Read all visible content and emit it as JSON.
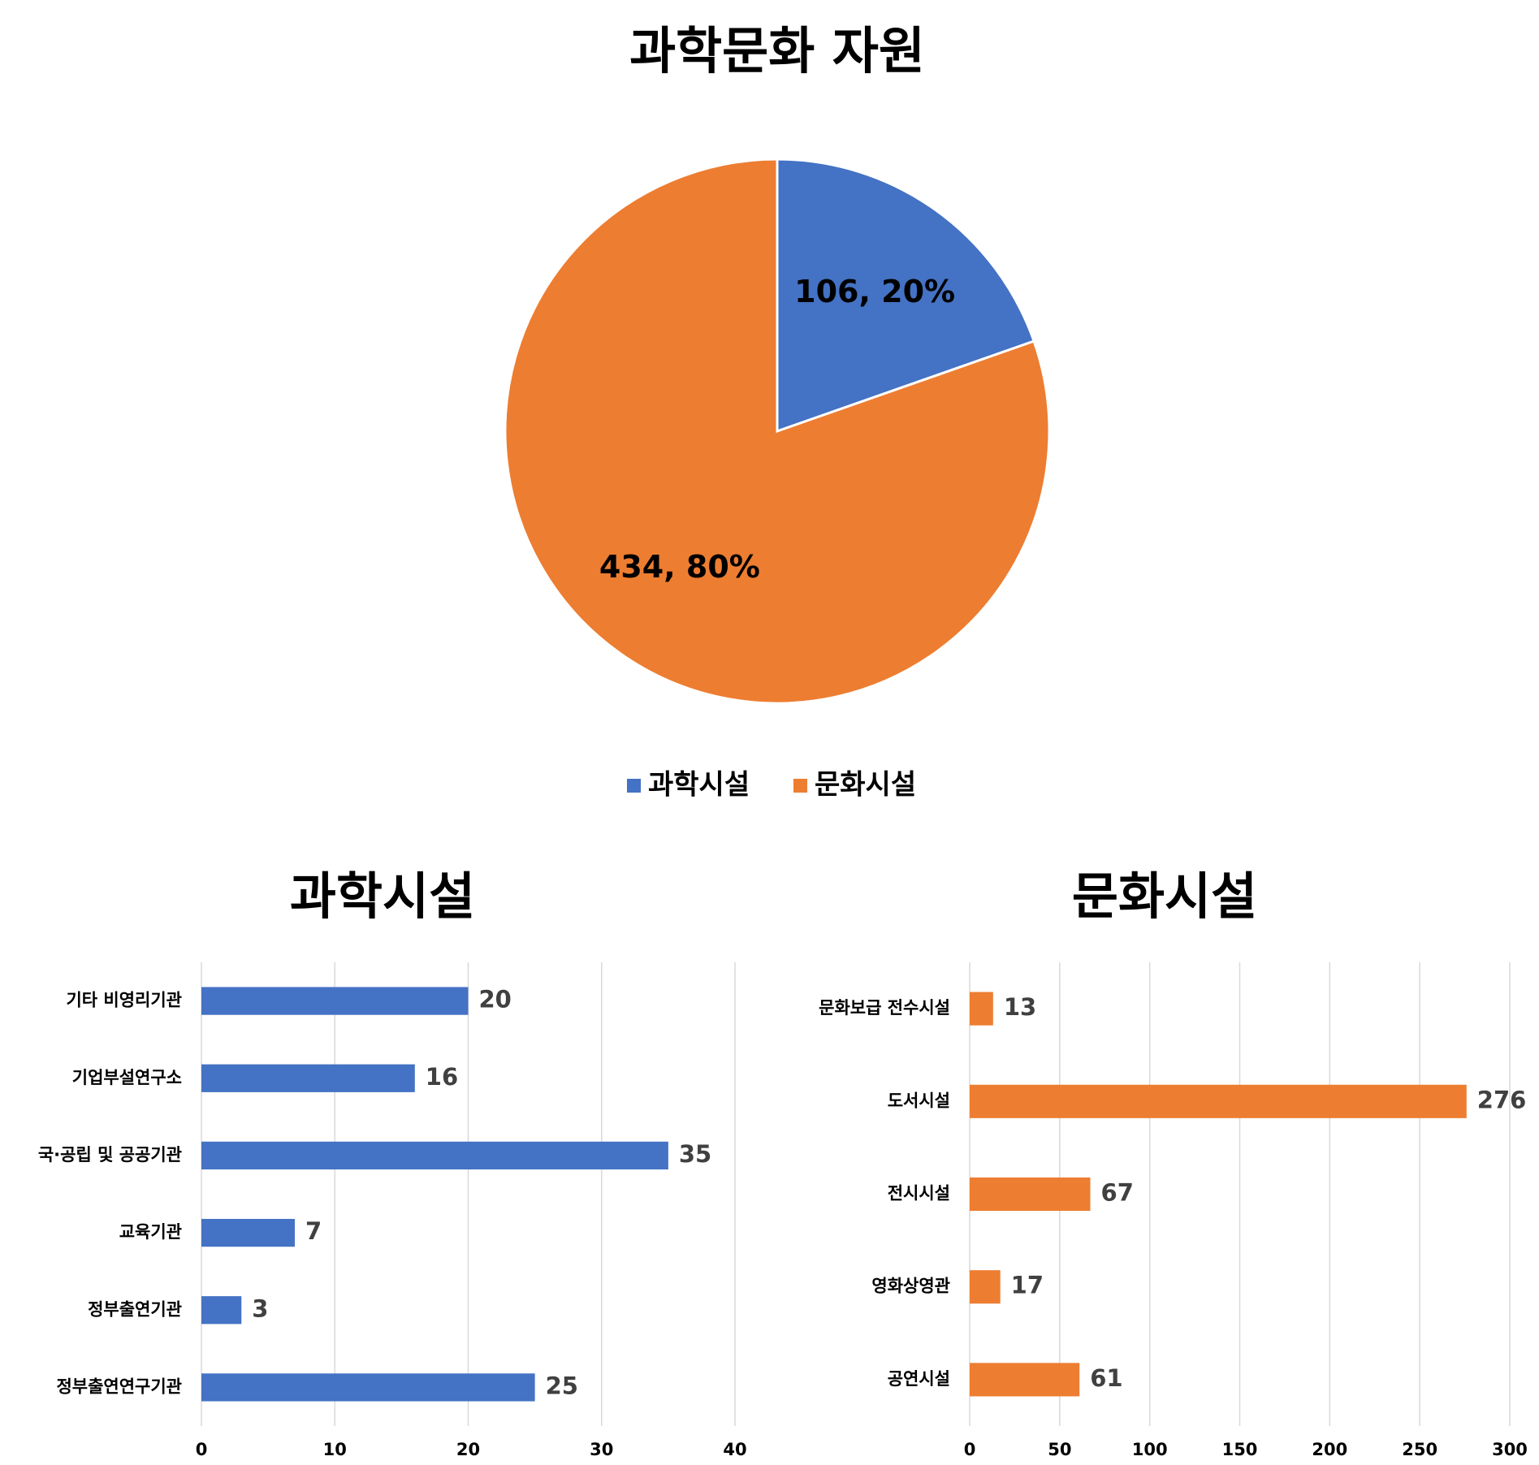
{
  "chart_data": [
    {
      "type": "pie",
      "title": "과학문화 자원",
      "categories": [
        "과학시설",
        "문화시설"
      ],
      "values": [
        106,
        434
      ],
      "value_labels": [
        "106, 20%",
        "434, 80%"
      ],
      "colors": [
        "#4472c4",
        "#ed7d31"
      ],
      "legend": "bottom"
    },
    {
      "type": "bar",
      "orientation": "horizontal",
      "title": "과학시설",
      "categories": [
        "기타 비영리기관",
        "기업부설연구소",
        "국·공립 및 공공기관",
        "교육기관",
        "정부출연기관",
        "정부출연연구기관"
      ],
      "values": [
        20,
        16,
        35,
        7,
        3,
        25
      ],
      "color": "#4472c4",
      "xlim": [
        0,
        40
      ],
      "xticks": [
        0,
        10,
        20,
        30,
        40
      ],
      "grid": true
    },
    {
      "type": "bar",
      "orientation": "horizontal",
      "title": "문화시설",
      "categories": [
        "문화보급 전수시설",
        "도서시설",
        "전시시설",
        "영화상영관",
        "공연시설"
      ],
      "values": [
        13,
        276,
        67,
        17,
        61
      ],
      "color": "#ed7d31",
      "xlim": [
        0,
        300
      ],
      "xticks": [
        0,
        50,
        100,
        150,
        200,
        250,
        300
      ],
      "grid": true
    }
  ]
}
